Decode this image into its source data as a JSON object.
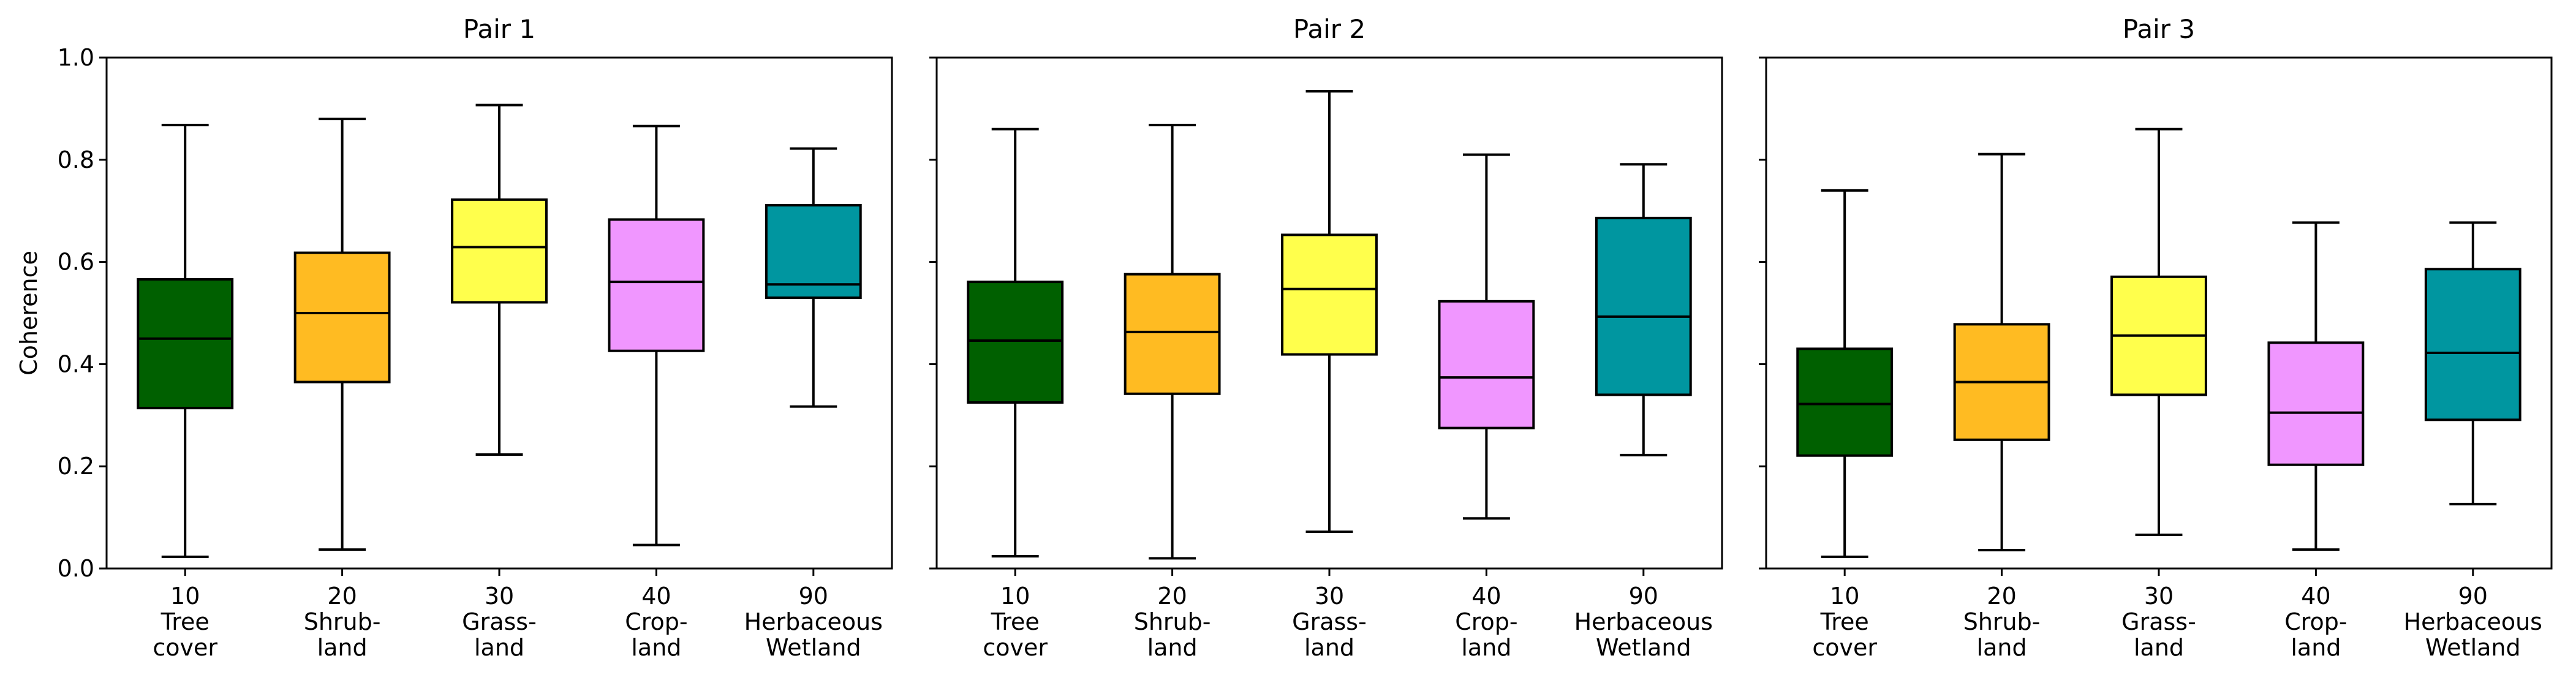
{
  "chart_data": {
    "type": "box",
    "ylabel": "Coherence",
    "ylim": [
      0,
      1.0
    ],
    "yticks": [
      "0.0",
      "0.2",
      "0.4",
      "0.6",
      "0.8",
      "1.0"
    ],
    "categories": [
      {
        "code": "10",
        "lines": [
          "Tree",
          "cover"
        ],
        "color": "#006000"
      },
      {
        "code": "20",
        "lines": [
          "Shrub-",
          "land"
        ],
        "color": "#ffbb22"
      },
      {
        "code": "30",
        "lines": [
          "Grass-",
          "land"
        ],
        "color": "#ffff4c"
      },
      {
        "code": "40",
        "lines": [
          "Crop-",
          "land"
        ],
        "color": "#f096ff"
      },
      {
        "code": "90",
        "lines": [
          "Herbaceous",
          "Wetland"
        ],
        "color": "#0096a0"
      }
    ],
    "panels": [
      {
        "title": "Pair 1",
        "boxes": [
          {
            "whislo": 0.023,
            "q1": 0.314,
            "med": 0.45,
            "q3": 0.566,
            "whishi": 0.868
          },
          {
            "whislo": 0.037,
            "q1": 0.365,
            "med": 0.5,
            "q3": 0.618,
            "whishi": 0.88
          },
          {
            "whislo": 0.223,
            "q1": 0.521,
            "med": 0.629,
            "q3": 0.722,
            "whishi": 0.907
          },
          {
            "whislo": 0.046,
            "q1": 0.426,
            "med": 0.561,
            "q3": 0.683,
            "whishi": 0.866
          },
          {
            "whislo": 0.317,
            "q1": 0.53,
            "med": 0.556,
            "q3": 0.711,
            "whishi": 0.822
          }
        ]
      },
      {
        "title": "Pair 2",
        "boxes": [
          {
            "whislo": 0.024,
            "q1": 0.325,
            "med": 0.446,
            "q3": 0.561,
            "whishi": 0.86
          },
          {
            "whislo": 0.02,
            "q1": 0.342,
            "med": 0.463,
            "q3": 0.576,
            "whishi": 0.868
          },
          {
            "whislo": 0.072,
            "q1": 0.419,
            "med": 0.547,
            "q3": 0.653,
            "whishi": 0.934
          },
          {
            "whislo": 0.098,
            "q1": 0.275,
            "med": 0.374,
            "q3": 0.523,
            "whishi": 0.81
          },
          {
            "whislo": 0.222,
            "q1": 0.34,
            "med": 0.493,
            "q3": 0.686,
            "whishi": 0.791
          }
        ]
      },
      {
        "title": "Pair 3",
        "boxes": [
          {
            "whislo": 0.023,
            "q1": 0.221,
            "med": 0.322,
            "q3": 0.43,
            "whishi": 0.74
          },
          {
            "whislo": 0.036,
            "q1": 0.252,
            "med": 0.365,
            "q3": 0.478,
            "whishi": 0.811
          },
          {
            "whislo": 0.066,
            "q1": 0.34,
            "med": 0.456,
            "q3": 0.571,
            "whishi": 0.86
          },
          {
            "whislo": 0.037,
            "q1": 0.203,
            "med": 0.305,
            "q3": 0.442,
            "whishi": 0.677
          },
          {
            "whislo": 0.126,
            "q1": 0.291,
            "med": 0.422,
            "q3": 0.586,
            "whishi": 0.677
          }
        ]
      }
    ]
  }
}
